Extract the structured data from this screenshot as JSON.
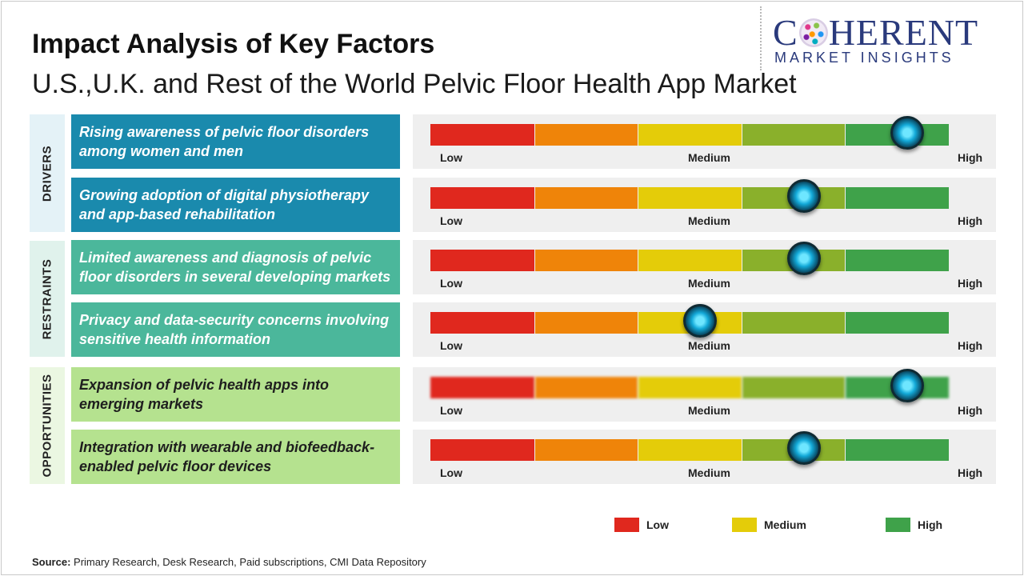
{
  "title": "Impact Analysis of Key Factors",
  "subtitle": "U.S.,U.K. and Rest of the World Pelvic Floor Health App Market",
  "logo": {
    "brand_pre": "C",
    "brand_post": "HERENT",
    "tagline": "MARKET INSIGHTS"
  },
  "colors": {
    "low": "#e0281e",
    "low_mid": "#ef8409",
    "medium": "#e4cc09",
    "medium_high": "#8ab02b",
    "high": "#3fa24a"
  },
  "scale_labels": {
    "low": "Low",
    "medium": "Medium",
    "high": "High"
  },
  "categories": [
    {
      "name": "DRIVERS",
      "bg": "#e4f2f7",
      "factor_bg": "#1a8aad"
    },
    {
      "name": "RESTRAINTS",
      "bg": "#e0f2ec",
      "factor_bg": "#4bb79b"
    },
    {
      "name": "OPPORTUNITIES",
      "bg": "#ebf7e2",
      "factor_bg": "#b5e28f"
    }
  ],
  "chart_data": {
    "type": "gauge",
    "title": "Impact Analysis of Key Factors",
    "subtitle": "U.S.,U.K. and Rest of the World Pelvic Floor Health App Market",
    "scale": [
      "Low",
      "Medium",
      "High"
    ],
    "factors": [
      {
        "category": "DRIVERS",
        "text": "Rising awareness of pelvic floor disorders among women and men",
        "impact": 0.92
      },
      {
        "category": "DRIVERS",
        "text": "Growing adoption of digital physiotherapy and app-based rehabilitation",
        "impact": 0.72
      },
      {
        "category": "RESTRAINTS",
        "text": "Limited awareness and diagnosis of pelvic floor disorders in several developing markets",
        "impact": 0.72
      },
      {
        "category": "RESTRAINTS",
        "text": "Privacy and data-security concerns involving sensitive health information",
        "impact": 0.52
      },
      {
        "category": "OPPORTUNITIES",
        "text": "Expansion of pelvic health apps into emerging markets",
        "impact": 0.92
      },
      {
        "category": "OPPORTUNITIES",
        "text": "Integration with wearable and biofeedback-enabled pelvic floor devices",
        "impact": 0.72
      }
    ],
    "legend": [
      {
        "label": "Low",
        "color": "#e0281e"
      },
      {
        "label": "Medium",
        "color": "#e4cc09"
      },
      {
        "label": "High",
        "color": "#3fa24a"
      }
    ]
  },
  "source": {
    "label": "Source:",
    "text": "Primary Research, Desk Research, Paid subscriptions, CMI Data Repository"
  }
}
